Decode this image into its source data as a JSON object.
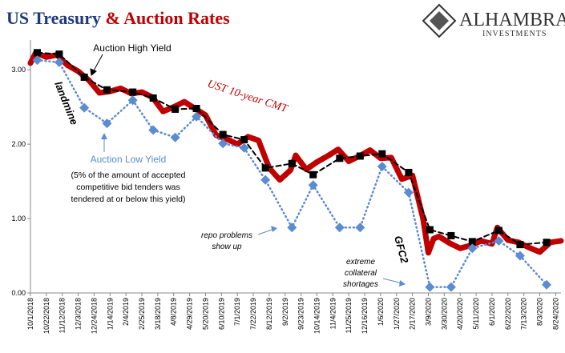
{
  "chart_data": {
    "type": "line",
    "title": "US Treasury",
    "title_highlight": "& Auction Rates",
    "logo": {
      "name": "ALHAMBRA",
      "tagline": "INVESTMENTS"
    },
    "xlim": [
      "10/1/2018",
      "8/31/2020"
    ],
    "xticks": [
      "10/1/2018",
      "10/22/2018",
      "11/12/2018",
      "12/3/2018",
      "12/24/2018",
      "1/14/2019",
      "2/4/2019",
      "2/25/2019",
      "3/18/2019",
      "4/8/2019",
      "4/29/2019",
      "5/20/2019",
      "6/10/2019",
      "7/1/2019",
      "7/22/2019",
      "8/12/2019",
      "9/2/2019",
      "9/23/2019",
      "10/14/2019",
      "11/4/2019",
      "11/25/2019",
      "12/16/2019",
      "1/6/2020",
      "1/27/2020",
      "2/17/2020",
      "3/9/2020",
      "3/30/2020",
      "4/20/2020",
      "5/11/2020",
      "6/1/2020",
      "6/22/2020",
      "7/13/2020",
      "8/3/2020",
      "8/24/2020"
    ],
    "ylim": [
      0,
      3.4
    ],
    "yticks": [
      {
        "value": 0,
        "label": "0.00"
      },
      {
        "value": 1,
        "label": "1.00"
      },
      {
        "value": 2,
        "label": "2.00"
      },
      {
        "value": 3,
        "label": "3.00"
      }
    ],
    "grid": false,
    "series": [
      {
        "name": "UST 10-year CMT",
        "color": "#c00000",
        "style": "thick",
        "x": [
          "10/1/2018",
          "10/8/2018",
          "10/22/2018",
          "11/5/2018",
          "11/19/2018",
          "12/3/2018",
          "12/17/2018",
          "12/31/2018",
          "1/14/2019",
          "1/28/2019",
          "2/11/2019",
          "2/25/2019",
          "3/11/2019",
          "3/25/2019",
          "4/8/2019",
          "4/22/2019",
          "5/6/2019",
          "5/20/2019",
          "6/3/2019",
          "6/17/2019",
          "7/1/2019",
          "7/15/2019",
          "7/29/2019",
          "8/12/2019",
          "8/26/2019",
          "9/9/2019",
          "9/16/2019",
          "9/30/2019",
          "10/14/2019",
          "10/28/2019",
          "11/11/2019",
          "11/25/2019",
          "12/9/2019",
          "12/23/2019",
          "1/6/2020",
          "1/20/2020",
          "2/3/2020",
          "2/17/2020",
          "3/2/2020",
          "3/9/2020",
          "3/16/2020",
          "3/23/2020",
          "4/6/2020",
          "4/20/2020",
          "5/4/2020",
          "5/18/2020",
          "6/1/2020",
          "6/8/2020",
          "6/22/2020",
          "7/6/2020",
          "7/20/2020",
          "8/3/2020",
          "8/17/2020",
          "8/31/2020"
        ],
        "values": [
          3.09,
          3.23,
          3.17,
          3.2,
          3.06,
          2.98,
          2.86,
          2.69,
          2.71,
          2.75,
          2.68,
          2.7,
          2.63,
          2.44,
          2.5,
          2.57,
          2.48,
          2.39,
          2.12,
          2.07,
          2.0,
          2.1,
          2.05,
          1.68,
          1.52,
          1.65,
          1.85,
          1.66,
          1.76,
          1.84,
          1.93,
          1.77,
          1.84,
          1.92,
          1.81,
          1.82,
          1.53,
          1.58,
          1.0,
          0.54,
          0.73,
          0.76,
          0.67,
          0.6,
          0.64,
          0.7,
          0.66,
          0.88,
          0.71,
          0.68,
          0.61,
          0.55,
          0.68,
          0.7
        ]
      },
      {
        "name": "Auction High Yield",
        "color": "#000000",
        "style": "dashed",
        "marker": "square",
        "x": [
          "10/10/2018",
          "11/8/2018",
          "12/11/2018",
          "1/10/2019",
          "2/13/2019",
          "3/12/2019",
          "4/10/2019",
          "5/8/2019",
          "6/12/2019",
          "7/10/2019",
          "8/7/2019",
          "9/11/2019",
          "10/9/2019",
          "11/13/2019",
          "12/10/2019",
          "1/8/2020",
          "2/12/2020",
          "3/11/2020",
          "4/8/2020",
          "5/6/2020",
          "6/10/2020",
          "7/8/2020",
          "8/12/2020"
        ],
        "values": [
          3.23,
          3.21,
          2.9,
          2.73,
          2.7,
          2.62,
          2.47,
          2.48,
          2.13,
          2.06,
          1.68,
          1.74,
          1.59,
          1.81,
          1.84,
          1.87,
          1.62,
          0.85,
          0.77,
          0.69,
          0.84,
          0.65,
          0.68
        ]
      },
      {
        "name": "Auction Low Yield",
        "color": "#5b8bd0",
        "style": "dotted",
        "marker": "diamond",
        "x": [
          "10/10/2018",
          "11/8/2018",
          "12/11/2018",
          "1/10/2019",
          "2/13/2019",
          "3/12/2019",
          "4/10/2019",
          "5/8/2019",
          "6/12/2019",
          "7/10/2019",
          "8/7/2019",
          "9/11/2019",
          "10/9/2019",
          "11/13/2019",
          "12/10/2019",
          "1/8/2020",
          "2/12/2020",
          "3/11/2020",
          "4/8/2020",
          "5/6/2020",
          "6/10/2020",
          "7/8/2020",
          "8/12/2020"
        ],
        "values": [
          3.13,
          3.1,
          2.49,
          2.28,
          2.59,
          2.19,
          2.09,
          2.37,
          2.01,
          1.95,
          1.52,
          0.88,
          1.45,
          0.88,
          0.88,
          1.7,
          1.35,
          0.08,
          0.08,
          0.6,
          0.7,
          0.5,
          0.11
        ]
      }
    ],
    "annotations": {
      "low_yield_note": [
        "(5% of the amount of accepted",
        "competitive bid tenders was",
        "tendered at or below this yield)"
      ],
      "landmine": "landmine",
      "repo": [
        "repo problems",
        "show up"
      ],
      "gfc": "GFC2",
      "collateral": [
        "extreme",
        "collateral",
        "shortages"
      ]
    }
  }
}
